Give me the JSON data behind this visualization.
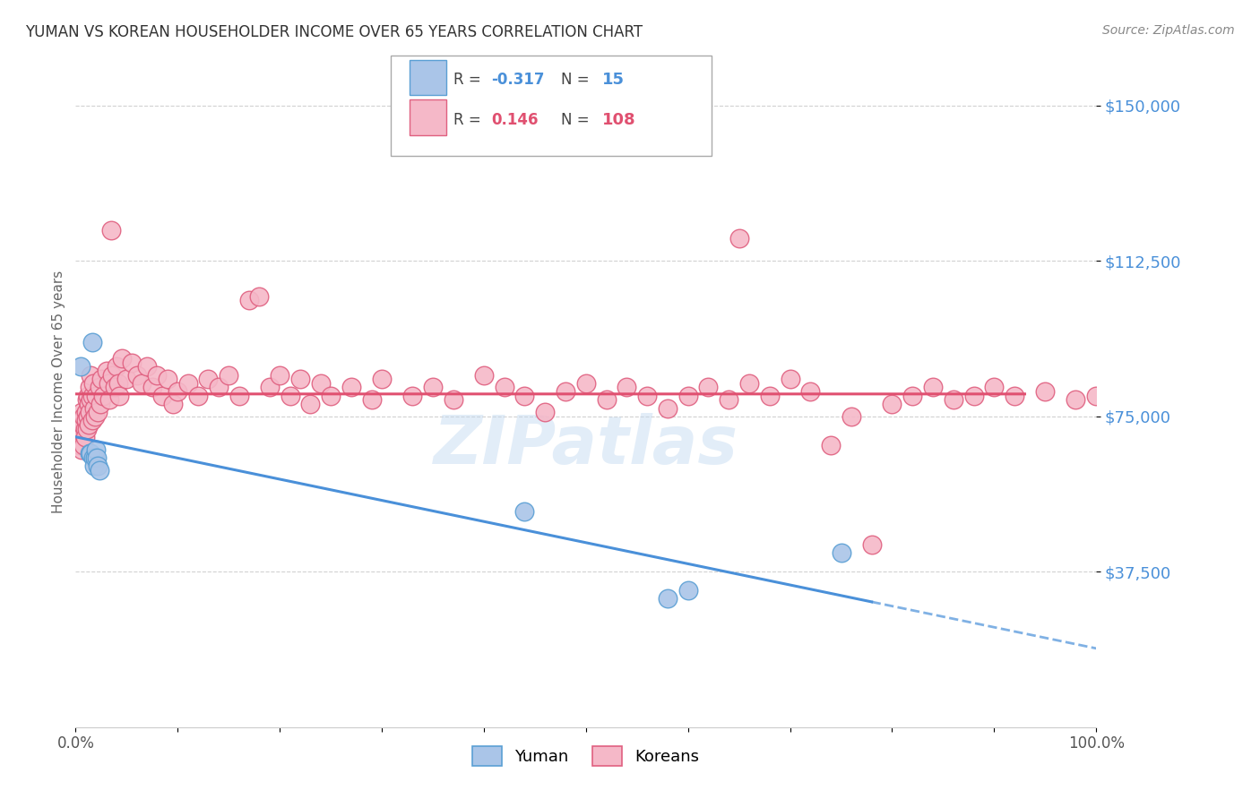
{
  "title": "YUMAN VS KOREAN HOUSEHOLDER INCOME OVER 65 YEARS CORRELATION CHART",
  "source": "Source: ZipAtlas.com",
  "ylabel": "Householder Income Over 65 years",
  "ytick_labels": [
    "$37,500",
    "$75,000",
    "$112,500",
    "$150,000"
  ],
  "ytick_values": [
    37500,
    75000,
    112500,
    150000
  ],
  "ymin": 0,
  "ymax": 162000,
  "xmin": 0.0,
  "xmax": 1.0,
  "legend_label_blue": "Yuman",
  "legend_label_pink": "Koreans",
  "blue_fill": "#aac5e8",
  "pink_fill": "#f5b8c8",
  "blue_edge": "#5a9fd4",
  "pink_edge": "#e06080",
  "blue_line": "#4a90d9",
  "pink_line": "#e05070",
  "watermark": "ZIPatlas",
  "yuman_x": [
    0.005,
    0.014,
    0.015,
    0.016,
    0.017,
    0.018,
    0.019,
    0.02,
    0.021,
    0.022,
    0.023,
    0.44,
    0.6,
    0.75,
    0.58
  ],
  "yuman_y": [
    87000,
    66000,
    66000,
    93000,
    65000,
    63000,
    65000,
    67000,
    65000,
    63000,
    62000,
    52000,
    33000,
    42000,
    31000
  ],
  "korean_x": [
    0.003,
    0.004,
    0.005,
    0.005,
    0.006,
    0.006,
    0.007,
    0.007,
    0.008,
    0.008,
    0.009,
    0.009,
    0.01,
    0.01,
    0.011,
    0.011,
    0.012,
    0.012,
    0.013,
    0.013,
    0.014,
    0.014,
    0.015,
    0.015,
    0.016,
    0.016,
    0.017,
    0.018,
    0.019,
    0.02,
    0.022,
    0.023,
    0.024,
    0.025,
    0.027,
    0.03,
    0.032,
    0.033,
    0.035,
    0.036,
    0.038,
    0.04,
    0.042,
    0.043,
    0.045,
    0.05,
    0.055,
    0.06,
    0.065,
    0.07,
    0.075,
    0.08,
    0.085,
    0.09,
    0.095,
    0.1,
    0.11,
    0.12,
    0.13,
    0.14,
    0.15,
    0.16,
    0.17,
    0.18,
    0.19,
    0.2,
    0.21,
    0.22,
    0.23,
    0.24,
    0.25,
    0.27,
    0.29,
    0.3,
    0.33,
    0.35,
    0.37,
    0.4,
    0.42,
    0.44,
    0.46,
    0.48,
    0.5,
    0.52,
    0.54,
    0.56,
    0.58,
    0.6,
    0.62,
    0.64,
    0.65,
    0.66,
    0.68,
    0.7,
    0.72,
    0.74,
    0.76,
    0.78,
    0.8,
    0.82,
    0.84,
    0.86,
    0.88,
    0.9,
    0.92,
    0.95,
    0.98,
    1.0
  ],
  "korean_y": [
    70000,
    68000,
    72000,
    74000,
    67000,
    76000,
    71000,
    73000,
    68000,
    75000,
    72000,
    70000,
    76000,
    74000,
    79000,
    72000,
    80000,
    75000,
    78000,
    73000,
    82000,
    76000,
    85000,
    79000,
    80000,
    74000,
    83000,
    77000,
    75000,
    80000,
    76000,
    82000,
    78000,
    84000,
    80000,
    86000,
    83000,
    79000,
    120000,
    85000,
    82000,
    87000,
    83000,
    80000,
    89000,
    84000,
    88000,
    85000,
    83000,
    87000,
    82000,
    85000,
    80000,
    84000,
    78000,
    81000,
    83000,
    80000,
    84000,
    82000,
    85000,
    80000,
    103000,
    104000,
    82000,
    85000,
    80000,
    84000,
    78000,
    83000,
    80000,
    82000,
    79000,
    84000,
    80000,
    82000,
    79000,
    85000,
    82000,
    80000,
    76000,
    81000,
    83000,
    79000,
    82000,
    80000,
    77000,
    80000,
    82000,
    79000,
    118000,
    83000,
    80000,
    84000,
    81000,
    68000,
    75000,
    44000,
    78000,
    80000,
    82000,
    79000,
    80000,
    82000,
    80000,
    81000,
    79000,
    80000
  ]
}
